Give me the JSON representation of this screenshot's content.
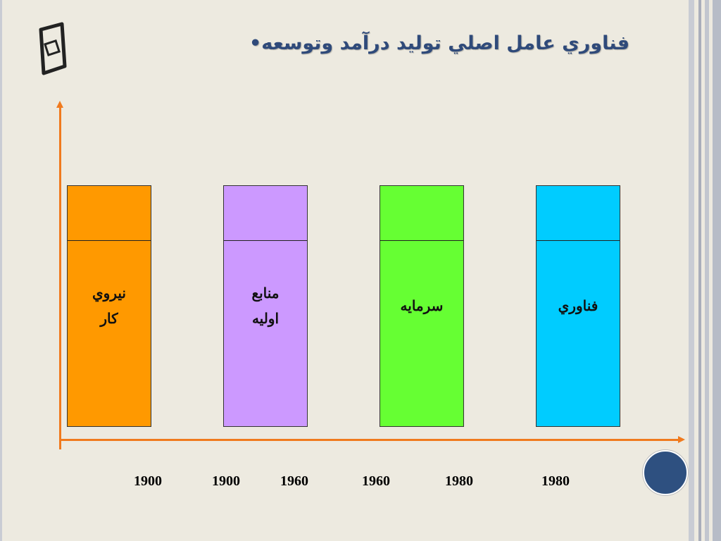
{
  "title": {
    "bullet": "•",
    "text": "فناوري عامل اصلي توليد درآمد وتوسعه"
  },
  "bars": [
    {
      "label": "نيروي\nكار",
      "color": "#ff9900"
    },
    {
      "label": "منابع\nاوليه",
      "color": "#cc99ff"
    },
    {
      "label": "سرمايه",
      "color": "#66ff33"
    },
    {
      "label": "فناوري",
      "color": "#00ccff"
    }
  ],
  "years": [
    "1900",
    "1900",
    "1960",
    "1960",
    "1980",
    "1980"
  ],
  "colors": {
    "axis": "#f07a1e",
    "title": "#2f4a7a",
    "background": "#edeae0",
    "circle": "#2e5080"
  }
}
